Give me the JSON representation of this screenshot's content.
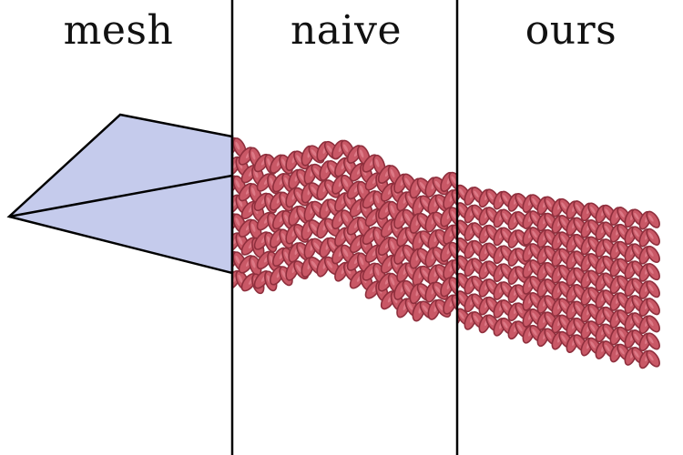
{
  "panels": [
    {
      "label": "mesh"
    },
    {
      "label": "naive"
    },
    {
      "label": "ours"
    }
  ],
  "colors": {
    "mesh_fill": "#c5cbec",
    "knit": "#c95866",
    "knit_dark": "#8f2f3d",
    "knit_light": "#e68894",
    "divider": "#000000"
  }
}
